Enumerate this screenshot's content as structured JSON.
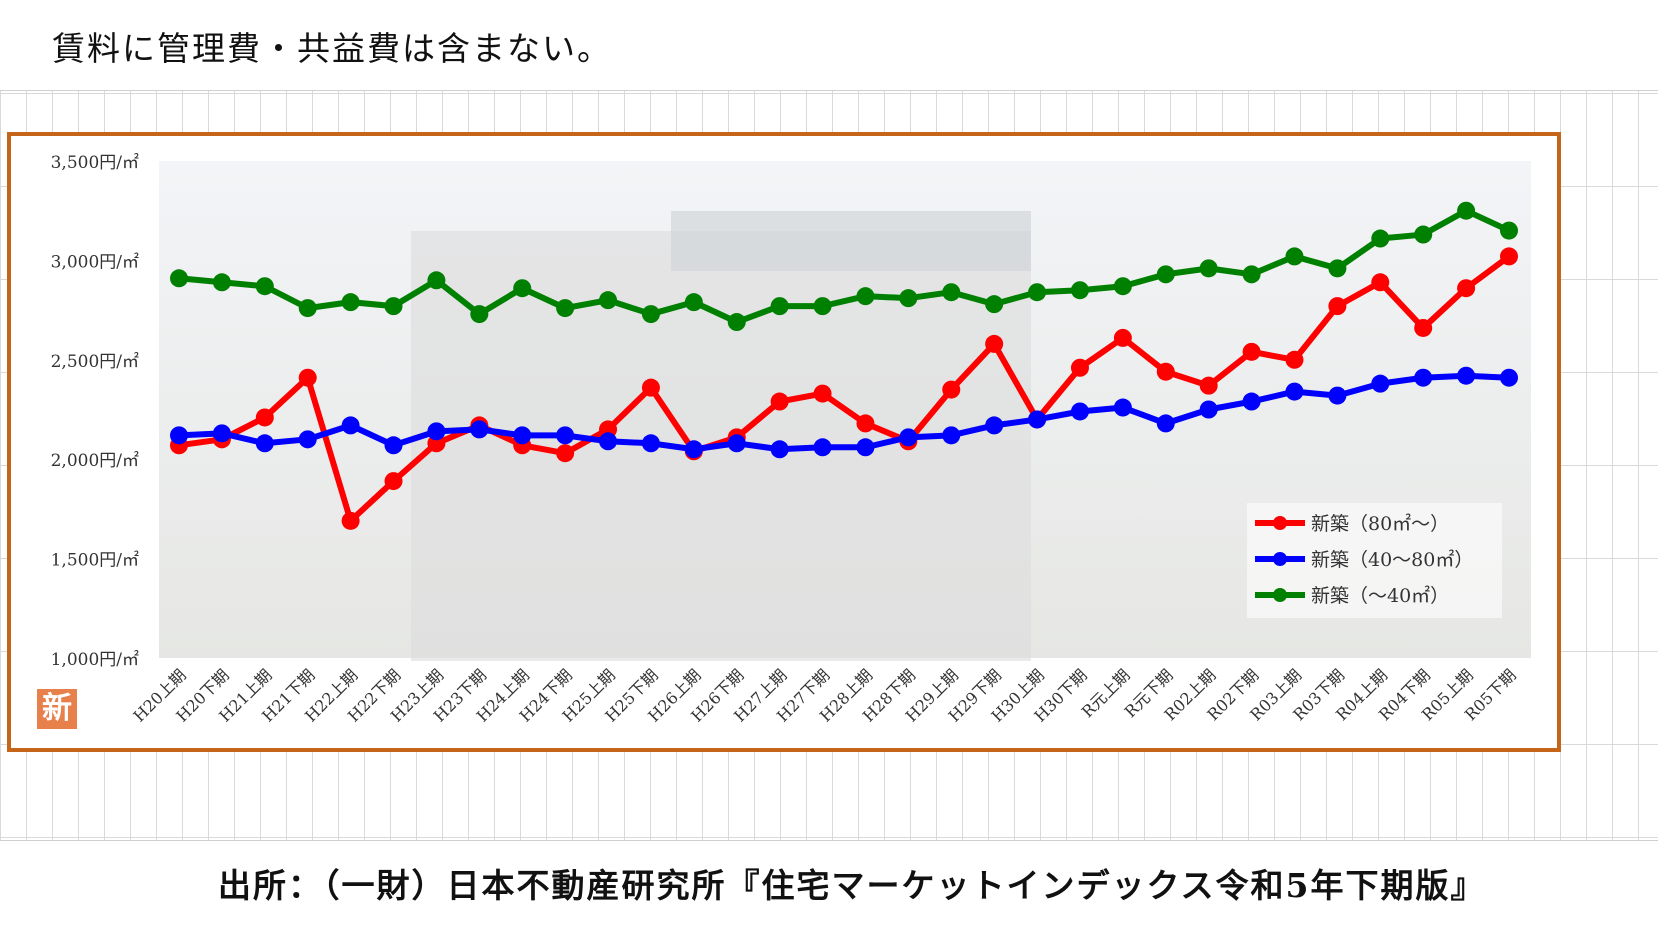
{
  "note": "賃料に管理費・共益費は含まない。",
  "source": "出所：（一財）日本不動産研究所『住宅マーケットインデックス令和5年下期版』",
  "badge": "新",
  "chart_data": {
    "type": "line",
    "title": "",
    "xlabel": "",
    "ylabel": "",
    "ylim": [
      1000,
      3500
    ],
    "yticks": [
      "1,000円/㎡",
      "1,500円/㎡",
      "2,000円/㎡",
      "2,500円/㎡",
      "3,000円/㎡",
      "3,500円/㎡"
    ],
    "ytick_values": [
      1000,
      1500,
      2000,
      2500,
      3000,
      3500
    ],
    "categories": [
      "H20上期",
      "H20下期",
      "H21上期",
      "H21下期",
      "H22上期",
      "H22下期",
      "H23上期",
      "H23下期",
      "H24上期",
      "H24下期",
      "H25上期",
      "H25下期",
      "H26上期",
      "H26下期",
      "H27上期",
      "H27下期",
      "H28上期",
      "H28下期",
      "H29上期",
      "H29下期",
      "H30上期",
      "H30下期",
      "R元上期",
      "R元下期",
      "R02上期",
      "R02下期",
      "R03上期",
      "R03下期",
      "R04上期",
      "R04下期",
      "R05上期",
      "R05下期"
    ],
    "legend_position": "bottom-right",
    "series": [
      {
        "name": "新築（80㎡～）",
        "color": "#ff0000",
        "values": [
          2070,
          2100,
          2210,
          2410,
          1690,
          1890,
          2080,
          2170,
          2070,
          2030,
          2150,
          2360,
          2040,
          2110,
          2290,
          2330,
          2180,
          2090,
          2350,
          2580,
          2200,
          2460,
          2610,
          2440,
          2370,
          2540,
          2500,
          2770,
          2890,
          2660,
          2860,
          3020
        ]
      },
      {
        "name": "新築（40～80㎡）",
        "color": "#0000ff",
        "values": [
          2120,
          2130,
          2080,
          2100,
          2170,
          2070,
          2140,
          2150,
          2120,
          2120,
          2090,
          2080,
          2050,
          2080,
          2050,
          2060,
          2060,
          2110,
          2120,
          2170,
          2200,
          2240,
          2260,
          2180,
          2250,
          2290,
          2340,
          2320,
          2380,
          2410,
          2420,
          2410
        ]
      },
      {
        "name": "新築（～40㎡）",
        "color": "#008000",
        "values": [
          2910,
          2890,
          2870,
          2760,
          2790,
          2770,
          2900,
          2730,
          2860,
          2760,
          2800,
          2730,
          2790,
          2690,
          2770,
          2770,
          2820,
          2810,
          2840,
          2780,
          2840,
          2850,
          2870,
          2930,
          2960,
          2930,
          3020,
          2960,
          3110,
          3130,
          3250,
          3150
        ]
      }
    ]
  }
}
